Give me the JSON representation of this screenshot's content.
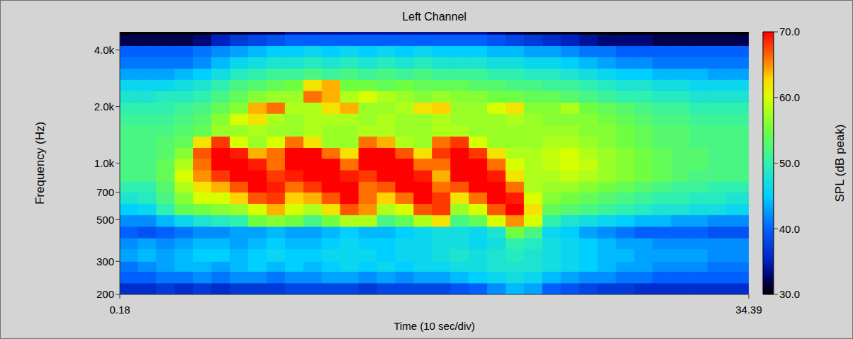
{
  "chart_data": {
    "type": "heatmap",
    "title": "Left Channel",
    "x_label": "Time (10 sec/div)",
    "y_label": "Frequency (Hz)",
    "xlim": [
      0.18,
      34.39
    ],
    "xticks": [
      0.18,
      34.39
    ],
    "ylim": [
      200,
      5000
    ],
    "yticks": [
      200,
      300,
      500,
      700,
      {
        "value": 1000,
        "label": "1.0k"
      },
      {
        "value": 2000,
        "label": "2.0k"
      },
      {
        "value": 4000,
        "label": "4.0k"
      }
    ],
    "log": "y",
    "grid": false,
    "x_edges": [
      0.18,
      1.18,
      2.18,
      3.18,
      4.18,
      5.18,
      6.18,
      7.18,
      8.18,
      9.18,
      10.18,
      11.18,
      12.18,
      13.18,
      14.18,
      15.18,
      16.18,
      17.18,
      18.18,
      19.18,
      20.18,
      21.18,
      22.18,
      23.18,
      24.18,
      25.18,
      26.18,
      27.18,
      28.18,
      29.18,
      30.18,
      31.18,
      32.18,
      33.18,
      34.39
    ],
    "y_edges": [
      200,
      230,
      265,
      300,
      350,
      400,
      460,
      530,
      610,
      700,
      800,
      920,
      1060,
      1210,
      1390,
      1600,
      1840,
      2110,
      2430,
      2790,
      3200,
      3680,
      4220,
      4850,
      5000
    ],
    "cells": [
      [
        36,
        36,
        37,
        36,
        37,
        36,
        37,
        37,
        37,
        38,
        38,
        38,
        38,
        37,
        38,
        38,
        38,
        38,
        39,
        40,
        42,
        44,
        43,
        40,
        39,
        38,
        37,
        37,
        36,
        36,
        36,
        36,
        36,
        36
      ],
      [
        40,
        40,
        41,
        41,
        42,
        41,
        42,
        42,
        41,
        42,
        42,
        43,
        43,
        42,
        43,
        42,
        43,
        43,
        44,
        45,
        46,
        47,
        46,
        44,
        43,
        42,
        42,
        41,
        41,
        40,
        40,
        40,
        40,
        40
      ],
      [
        41,
        42,
        43,
        44,
        44,
        43,
        44,
        45,
        44,
        45,
        44,
        45,
        46,
        45,
        46,
        45,
        46,
        46,
        47,
        47,
        48,
        48,
        48,
        47,
        46,
        45,
        44,
        43,
        43,
        42,
        42,
        42,
        41,
        41
      ],
      [
        43,
        44,
        43,
        44,
        45,
        45,
        44,
        45,
        46,
        45,
        45,
        46,
        46,
        46,
        45,
        46,
        46,
        47,
        48,
        47,
        48,
        49,
        48,
        47,
        46,
        45,
        44,
        44,
        43,
        43,
        43,
        43,
        42,
        42
      ],
      [
        42,
        43,
        42,
        43,
        44,
        44,
        43,
        44,
        45,
        44,
        44,
        45,
        46,
        45,
        45,
        46,
        46,
        47,
        47,
        46,
        47,
        50,
        49,
        47,
        46,
        45,
        44,
        43,
        43,
        42,
        42,
        42,
        42,
        42
      ],
      [
        40,
        39,
        40,
        41,
        42,
        42,
        43,
        43,
        44,
        43,
        43,
        44,
        45,
        44,
        44,
        45,
        46,
        47,
        47,
        46,
        48,
        55,
        52,
        46,
        45,
        43,
        42,
        41,
        40,
        40,
        40,
        40,
        39,
        39
      ],
      [
        42,
        42,
        44,
        46,
        48,
        49,
        50,
        55,
        56,
        55,
        52,
        55,
        58,
        58,
        52,
        54,
        58,
        62,
        52,
        54,
        60,
        65,
        60,
        50,
        48,
        47,
        46,
        45,
        44,
        44,
        43,
        43,
        42,
        42
      ],
      [
        45,
        46,
        50,
        54,
        55,
        56,
        57,
        60,
        64,
        60,
        58,
        62,
        67,
        65,
        58,
        60,
        67,
        68,
        57,
        60,
        67,
        70,
        62,
        54,
        53,
        52,
        51,
        50,
        49,
        48,
        48,
        47,
        47,
        46
      ],
      [
        48,
        49,
        52,
        56,
        60,
        60,
        63,
        67,
        68,
        63,
        64,
        67,
        70,
        66,
        63,
        66,
        70,
        68,
        62,
        66,
        70,
        69,
        60,
        56,
        55,
        54,
        53,
        52,
        51,
        50,
        50,
        49,
        49,
        48
      ],
      [
        50,
        50,
        53,
        58,
        62,
        64,
        67,
        70,
        69,
        66,
        68,
        70,
        70,
        66,
        67,
        70,
        70,
        66,
        67,
        70,
        70,
        66,
        58,
        57,
        57,
        56,
        55,
        54,
        53,
        52,
        51,
        51,
        50,
        50
      ],
      [
        52,
        52,
        54,
        60,
        65,
        68,
        70,
        70,
        68,
        69,
        70,
        70,
        69,
        68,
        70,
        70,
        69,
        64,
        70,
        70,
        69,
        62,
        58,
        58,
        59,
        58,
        57,
        56,
        55,
        54,
        53,
        52,
        52,
        52
      ],
      [
        52,
        52,
        54,
        58,
        66,
        70,
        70,
        69,
        66,
        70,
        70,
        70,
        66,
        70,
        70,
        70,
        66,
        66,
        70,
        70,
        66,
        60,
        58,
        59,
        60,
        59,
        57,
        56,
        55,
        54,
        53,
        53,
        52,
        52
      ],
      [
        52,
        52,
        53,
        56,
        67,
        70,
        69,
        64,
        66,
        70,
        70,
        66,
        62,
        70,
        70,
        67,
        62,
        68,
        70,
        68,
        62,
        58,
        58,
        59,
        60,
        58,
        57,
        56,
        55,
        54,
        53,
        53,
        52,
        52
      ],
      [
        52,
        52,
        53,
        54,
        62,
        68,
        60,
        57,
        60,
        66,
        62,
        57,
        57,
        66,
        64,
        58,
        57,
        66,
        68,
        60,
        57,
        57,
        57,
        58,
        58,
        57,
        56,
        55,
        54,
        53,
        53,
        52,
        52,
        52
      ],
      [
        52,
        52,
        52,
        53,
        54,
        57,
        57,
        58,
        57,
        57,
        58,
        57,
        57,
        58,
        58,
        57,
        57,
        58,
        58,
        57,
        57,
        57,
        57,
        57,
        57,
        56,
        56,
        55,
        54,
        53,
        53,
        52,
        52,
        52
      ],
      [
        51,
        51,
        51,
        52,
        53,
        56,
        60,
        62,
        58,
        57,
        58,
        58,
        58,
        57,
        58,
        57,
        57,
        58,
        57,
        57,
        57,
        58,
        57,
        56,
        56,
        56,
        55,
        54,
        53,
        52,
        52,
        51,
        51,
        51
      ],
      [
        50,
        50,
        50,
        51,
        52,
        54,
        56,
        64,
        66,
        58,
        58,
        62,
        64,
        57,
        57,
        58,
        62,
        63,
        57,
        57,
        60,
        62,
        56,
        56,
        58,
        55,
        54,
        53,
        52,
        51,
        51,
        50,
        50,
        50
      ],
      [
        48,
        48,
        49,
        49,
        50,
        52,
        54,
        56,
        57,
        57,
        66,
        64,
        58,
        60,
        58,
        57,
        56,
        57,
        56,
        56,
        55,
        55,
        54,
        54,
        53,
        52,
        51,
        50,
        50,
        49,
        49,
        48,
        48,
        48
      ],
      [
        46,
        46,
        46,
        47,
        48,
        50,
        52,
        53,
        54,
        55,
        62,
        64,
        55,
        55,
        54,
        55,
        54,
        54,
        54,
        53,
        53,
        52,
        52,
        51,
        51,
        50,
        49,
        48,
        48,
        47,
        47,
        46,
        46,
        46
      ],
      [
        43,
        43,
        43,
        44,
        45,
        47,
        49,
        50,
        51,
        51,
        52,
        51,
        52,
        51,
        52,
        51,
        52,
        51,
        51,
        51,
        50,
        50,
        49,
        49,
        48,
        47,
        46,
        45,
        45,
        44,
        44,
        44,
        43,
        43
      ],
      [
        41,
        41,
        41,
        41,
        42,
        44,
        46,
        47,
        48,
        48,
        49,
        48,
        49,
        48,
        49,
        48,
        49,
        48,
        48,
        48,
        47,
        47,
        46,
        46,
        45,
        44,
        43,
        42,
        42,
        41,
        41,
        41,
        41,
        41
      ],
      [
        40,
        40,
        40,
        40,
        41,
        42,
        43,
        44,
        45,
        45,
        46,
        45,
        46,
        45,
        46,
        45,
        46,
        45,
        45,
        45,
        44,
        44,
        43,
        43,
        42,
        41,
        41,
        40,
        40,
        40,
        40,
        40,
        40,
        40
      ],
      [
        32,
        32,
        32,
        32,
        33,
        35,
        37,
        38,
        39,
        40,
        40,
        40,
        40,
        40,
        40,
        40,
        40,
        40,
        40,
        40,
        39,
        38,
        37,
        36,
        35,
        34,
        33,
        33,
        33,
        32,
        32,
        32,
        32,
        32
      ],
      [
        30,
        30,
        30,
        30,
        30,
        31,
        31,
        32,
        32,
        34,
        34,
        34,
        34,
        34,
        34,
        34,
        34,
        34,
        34,
        34,
        33,
        32,
        31,
        31,
        31,
        30,
        30,
        30,
        30,
        30,
        30,
        30,
        30,
        30
      ]
    ],
    "colorbar": {
      "label": "SPL (dB peak)",
      "range": [
        30,
        70
      ],
      "ticks": [
        {
          "value": 30,
          "label": "30.0"
        },
        {
          "value": 40,
          "label": "40.0"
        },
        {
          "value": 50,
          "label": "50.0"
        },
        {
          "value": 60,
          "label": "60.0"
        },
        {
          "value": 70,
          "label": "70.0"
        }
      ]
    }
  }
}
